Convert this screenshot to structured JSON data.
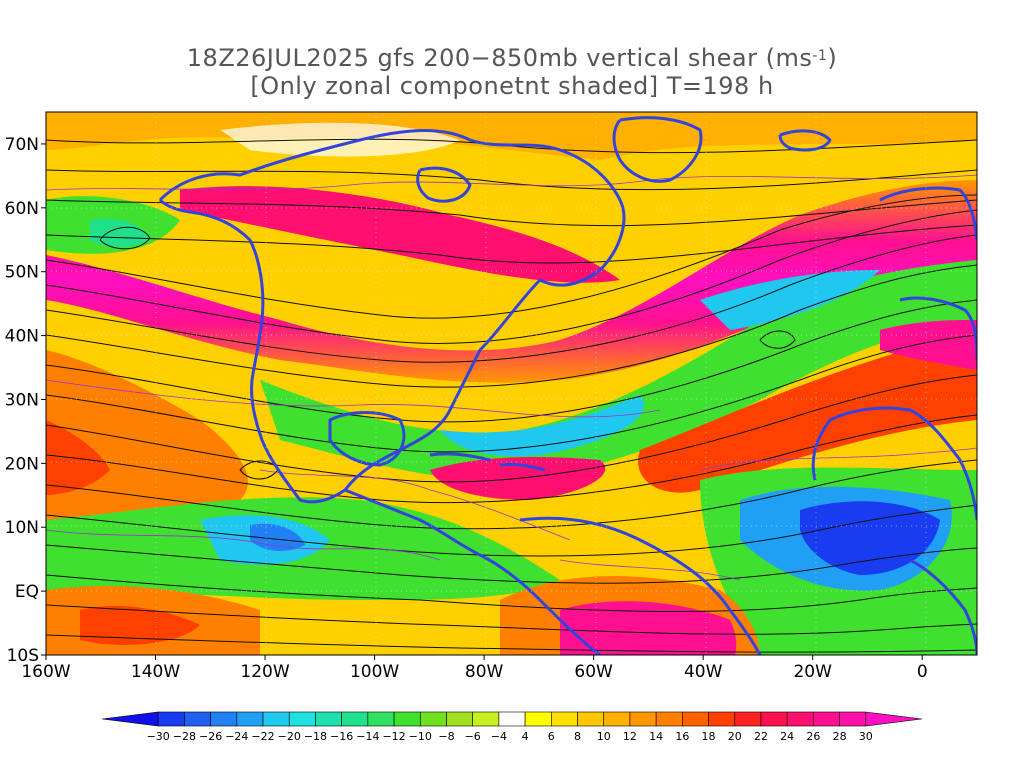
{
  "title": {
    "line1_prefix": "18Z26JUL2025 gfs 200−850mb vertical shear (ms",
    "line1_sup": "-1",
    "line1_suffix": ")",
    "line2": "[Only zonal componetnt shaded] T=198 h"
  },
  "map": {
    "lon_range": [
      -160,
      10
    ],
    "lat_range": [
      -10,
      75
    ],
    "lat_labels": [
      {
        "lat": 70,
        "text": "70N"
      },
      {
        "lat": 60,
        "text": "60N"
      },
      {
        "lat": 50,
        "text": "50N"
      },
      {
        "lat": 40,
        "text": "40N"
      },
      {
        "lat": 30,
        "text": "30N"
      },
      {
        "lat": 20,
        "text": "20N"
      },
      {
        "lat": 10,
        "text": "10N"
      },
      {
        "lat": 0,
        "text": "EQ"
      },
      {
        "lat": -10,
        "text": "10S"
      }
    ],
    "lon_labels": [
      {
        "lon": -160,
        "text": "160W"
      },
      {
        "lon": -140,
        "text": "140W"
      },
      {
        "lon": -120,
        "text": "120W"
      },
      {
        "lon": -100,
        "text": "100W"
      },
      {
        "lon": -80,
        "text": "80W"
      },
      {
        "lon": -60,
        "text": "60W"
      },
      {
        "lon": -40,
        "text": "40W"
      },
      {
        "lon": -20,
        "text": "20W"
      },
      {
        "lon": 0,
        "text": "0"
      }
    ],
    "colors": {
      "coastline": "#3344dd",
      "streamline": "#111111",
      "contour": "#9933cc"
    }
  },
  "colorbar": {
    "labels": [
      "-30",
      "-28",
      "-26",
      "-24",
      "-22",
      "-20",
      "-18",
      "-16",
      "-14",
      "-12",
      "-10",
      "-8",
      "-6",
      "-4",
      "4",
      "6",
      "8",
      "10",
      "12",
      "14",
      "16",
      "18",
      "20",
      "22",
      "24",
      "26",
      "28",
      "30"
    ],
    "colors": [
      "#1010e8",
      "#1a3cf0",
      "#2060f0",
      "#2080f4",
      "#20a0f4",
      "#20c8f0",
      "#20e0e0",
      "#20e0b0",
      "#20e08c",
      "#30e060",
      "#40e030",
      "#70e020",
      "#a0e020",
      "#c8f020",
      "#ffffff",
      "#ffff00",
      "#ffe000",
      "#ffc800",
      "#ffb000",
      "#ff9800",
      "#ff8000",
      "#ff6000",
      "#ff4000",
      "#ff2020",
      "#ff1050",
      "#ff1070",
      "#ff1090",
      "#ff10a8",
      "#ff10c0"
    ]
  }
}
